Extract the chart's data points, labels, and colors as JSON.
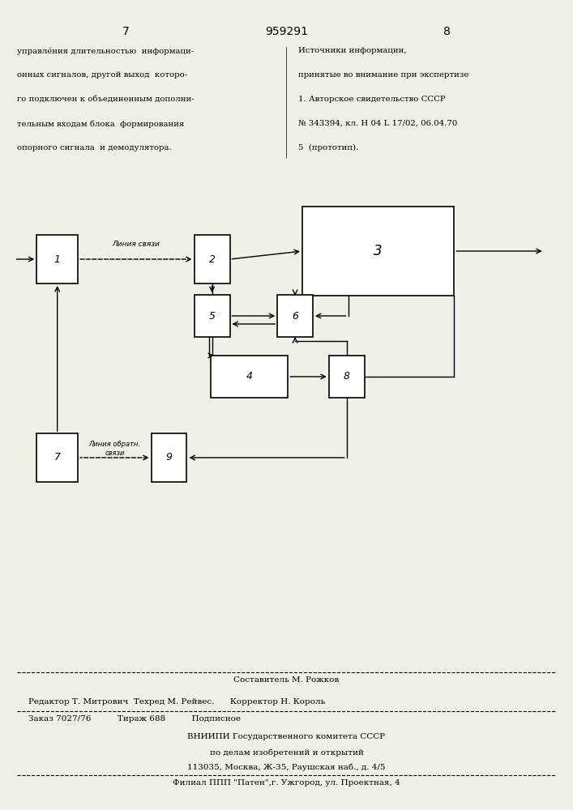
{
  "bg_color": "#f0efe8",
  "page_number_left": "7",
  "page_number_center": "959291",
  "page_number_right": "8",
  "left_text": [
    "управле́ния длительностью  информаци-",
    "онных сигналов, другой выход  которо-",
    "го подключен к объединенным дополни-",
    "тельным входам блока  формирования",
    "опорного сигнала  и демодулятора."
  ],
  "right_text_lines": [
    "Источники информации,",
    "принятые во внимание при экспертизе",
    "1. Авторское свидетельство СССР",
    "№ 343394, кл. H 04 L 17/02, 06.04.70",
    "5  (прототип)."
  ],
  "footer_lines": [
    "Составитель М. Рожков",
    "Редактор Т. Митрович  Техред М. Рейвес.      Корректор Н. Король",
    "Заказ 7027/76          Тираж 688          Подписное",
    "ВНИИПИ Государственного комитета СССР",
    "по делам изобретений и открытий",
    "113035, Москва, Ж-35, Раушская наб., д. 4/5",
    "Филиал ППП \"Патен\",г. Ужгород, ул. Проектная, 4"
  ]
}
